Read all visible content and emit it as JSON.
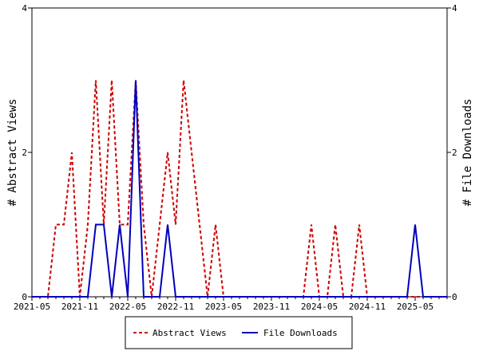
{
  "chart_data": {
    "type": "line",
    "title": "",
    "xlabel": "",
    "ylabel": "# Abstract Views",
    "y2label": "# File Downloads",
    "ylim": [
      0,
      4
    ],
    "y2lim": [
      0,
      4
    ],
    "yticks": [
      "0",
      "2",
      "4"
    ],
    "y2ticks": [
      "0",
      "2",
      "4"
    ],
    "xtick_labels": [
      "2021-05",
      "2021-11",
      "2022-05",
      "2022-11",
      "2023-05",
      "2023-11",
      "2024-05",
      "2024-11",
      "2025-05"
    ],
    "x_start": "2021-05",
    "x_end": "2025-09",
    "legend_position": "bottom",
    "series": [
      {
        "name": "Abstract Views",
        "color": "#cc0000",
        "style": "dashed",
        "axis": "left",
        "values": [
          0,
          0,
          0,
          1,
          1,
          2,
          0,
          1,
          3,
          1,
          3,
          1,
          1,
          3,
          1,
          0,
          1,
          2,
          1,
          3,
          2,
          1,
          0,
          1,
          0,
          0,
          0,
          0,
          0,
          0,
          0,
          0,
          0,
          0,
          0,
          1,
          0,
          0,
          1,
          0,
          0,
          1,
          0,
          0,
          0,
          0,
          0,
          0,
          0,
          0,
          0,
          0,
          0
        ]
      },
      {
        "name": "File Downloads",
        "color": "#0000bb",
        "style": "solid",
        "axis": "right",
        "values": [
          0,
          0,
          0,
          0,
          0,
          0,
          0,
          0,
          1,
          1,
          0,
          1,
          0,
          3,
          0,
          0,
          0,
          1,
          0,
          0,
          0,
          0,
          0,
          0,
          0,
          0,
          0,
          0,
          0,
          0,
          0,
          0,
          0,
          0,
          0,
          0,
          0,
          0,
          0,
          0,
          0,
          0,
          0,
          0,
          0,
          0,
          0,
          0,
          1,
          0,
          0,
          0,
          0
        ]
      }
    ]
  }
}
